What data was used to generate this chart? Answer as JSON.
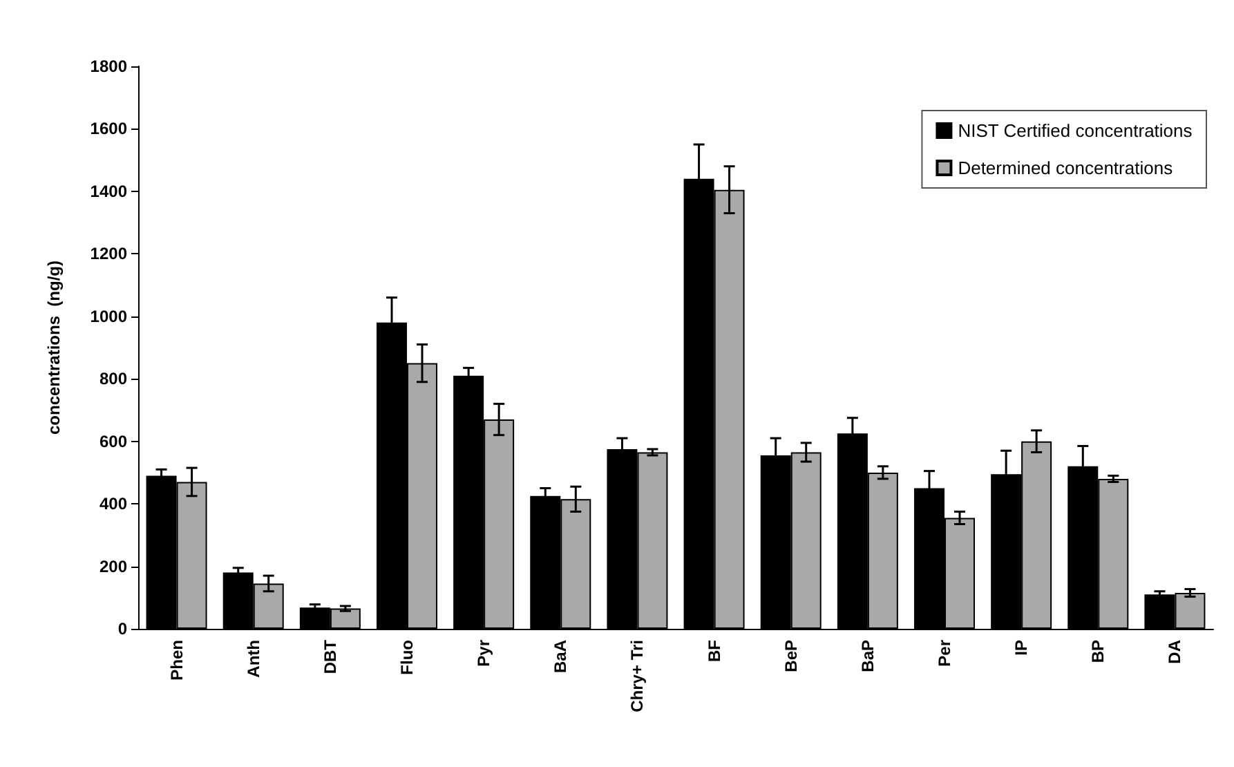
{
  "chart_data": {
    "type": "bar",
    "ylabel": "concentrations  (ng/g)",
    "categories": [
      "Phen",
      "Anth",
      "DBT",
      "Fluo",
      "Pyr",
      "BaA",
      "Chry+ Tri",
      "BF",
      "BeP",
      "BaP",
      "Per",
      "IP",
      "BP",
      "DA"
    ],
    "series": [
      {
        "name": "NIST Certified concentrations",
        "color": "#000000",
        "values": [
          490,
          180,
          68,
          980,
          810,
          425,
          575,
          1440,
          555,
          625,
          450,
          495,
          520,
          110
        ],
        "errors": [
          20,
          15,
          10,
          80,
          25,
          25,
          35,
          110,
          55,
          50,
          55,
          75,
          65,
          10
        ]
      },
      {
        "name": "Determined concentrations",
        "color": "#a9a9a9",
        "values": [
          470,
          145,
          65,
          850,
          670,
          415,
          565,
          1405,
          565,
          500,
          355,
          600,
          480,
          115
        ],
        "errors": [
          45,
          25,
          8,
          60,
          50,
          40,
          10,
          75,
          30,
          20,
          20,
          35,
          10,
          12
        ]
      }
    ],
    "ylim": [
      0,
      1800
    ],
    "yticks": [
      0,
      200,
      400,
      600,
      800,
      1000,
      1200,
      1400,
      1600,
      1800
    ],
    "grid": false,
    "legend": "top right"
  }
}
